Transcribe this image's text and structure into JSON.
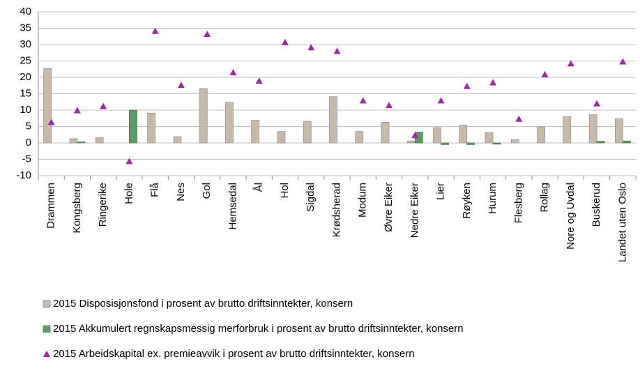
{
  "chart_data": {
    "type": "bar",
    "categories": [
      "Drammen",
      "Kongsberg",
      "Ringerike",
      "Hole",
      "Flå",
      "Nes",
      "Gol",
      "Hemsedal",
      "Ål",
      "Hol",
      "Sigdal",
      "Krødsherad",
      "Modum",
      "Øvre Eiker",
      "Nedre Eiker",
      "Lier",
      "Røyken",
      "Hurum",
      "Flesberg",
      "Rollag",
      "Nore og Uvdal",
      "Buskerud",
      "Landet uten Oslo"
    ],
    "series": [
      {
        "name": "2015 Disposisjonsfond i prosent av brutto driftsinntekter, konsern",
        "type": "bar",
        "color": "#c9b9aa",
        "values": [
          22.7,
          1.3,
          1.6,
          0,
          9.1,
          1.9,
          16.6,
          12.4,
          6.9,
          3.5,
          6.6,
          14.1,
          3.5,
          6.3,
          0.6,
          4.7,
          5.4,
          3.2,
          1.0,
          4.9,
          8.0,
          8.6,
          7.4
        ]
      },
      {
        "name": "2015 Akkumulert regnskapsmessig merforbruk i prosent av brutto driftsinntekter, konsern",
        "type": "bar",
        "color": "#5e9b62",
        "values": [
          0,
          0.3,
          0,
          10.0,
          0,
          0,
          0,
          0,
          0,
          0,
          0,
          0,
          0,
          0,
          3.3,
          -0.5,
          -0.5,
          -0.4,
          0,
          0,
          0,
          0.5,
          0.6
        ]
      },
      {
        "name": "2015 Arbeidskapital ex. premieavvik i prosent av brutto driftsinntekter, konsern",
        "type": "scatter",
        "color": "#9b2a9e",
        "values": [
          6.3,
          9.9,
          11.2,
          -5.6,
          34.1,
          17.6,
          33.2,
          21.5,
          18.9,
          30.7,
          29.1,
          28.0,
          12.9,
          11.5,
          2.3,
          12.9,
          17.3,
          18.4,
          7.3,
          20.9,
          24.2,
          12.0,
          24.8
        ]
      }
    ],
    "ylim": [
      -10,
      40
    ],
    "yticks": [
      -10,
      -5,
      0,
      5,
      10,
      15,
      20,
      25,
      30,
      35,
      40
    ],
    "grid": true,
    "legend": "bottom"
  }
}
